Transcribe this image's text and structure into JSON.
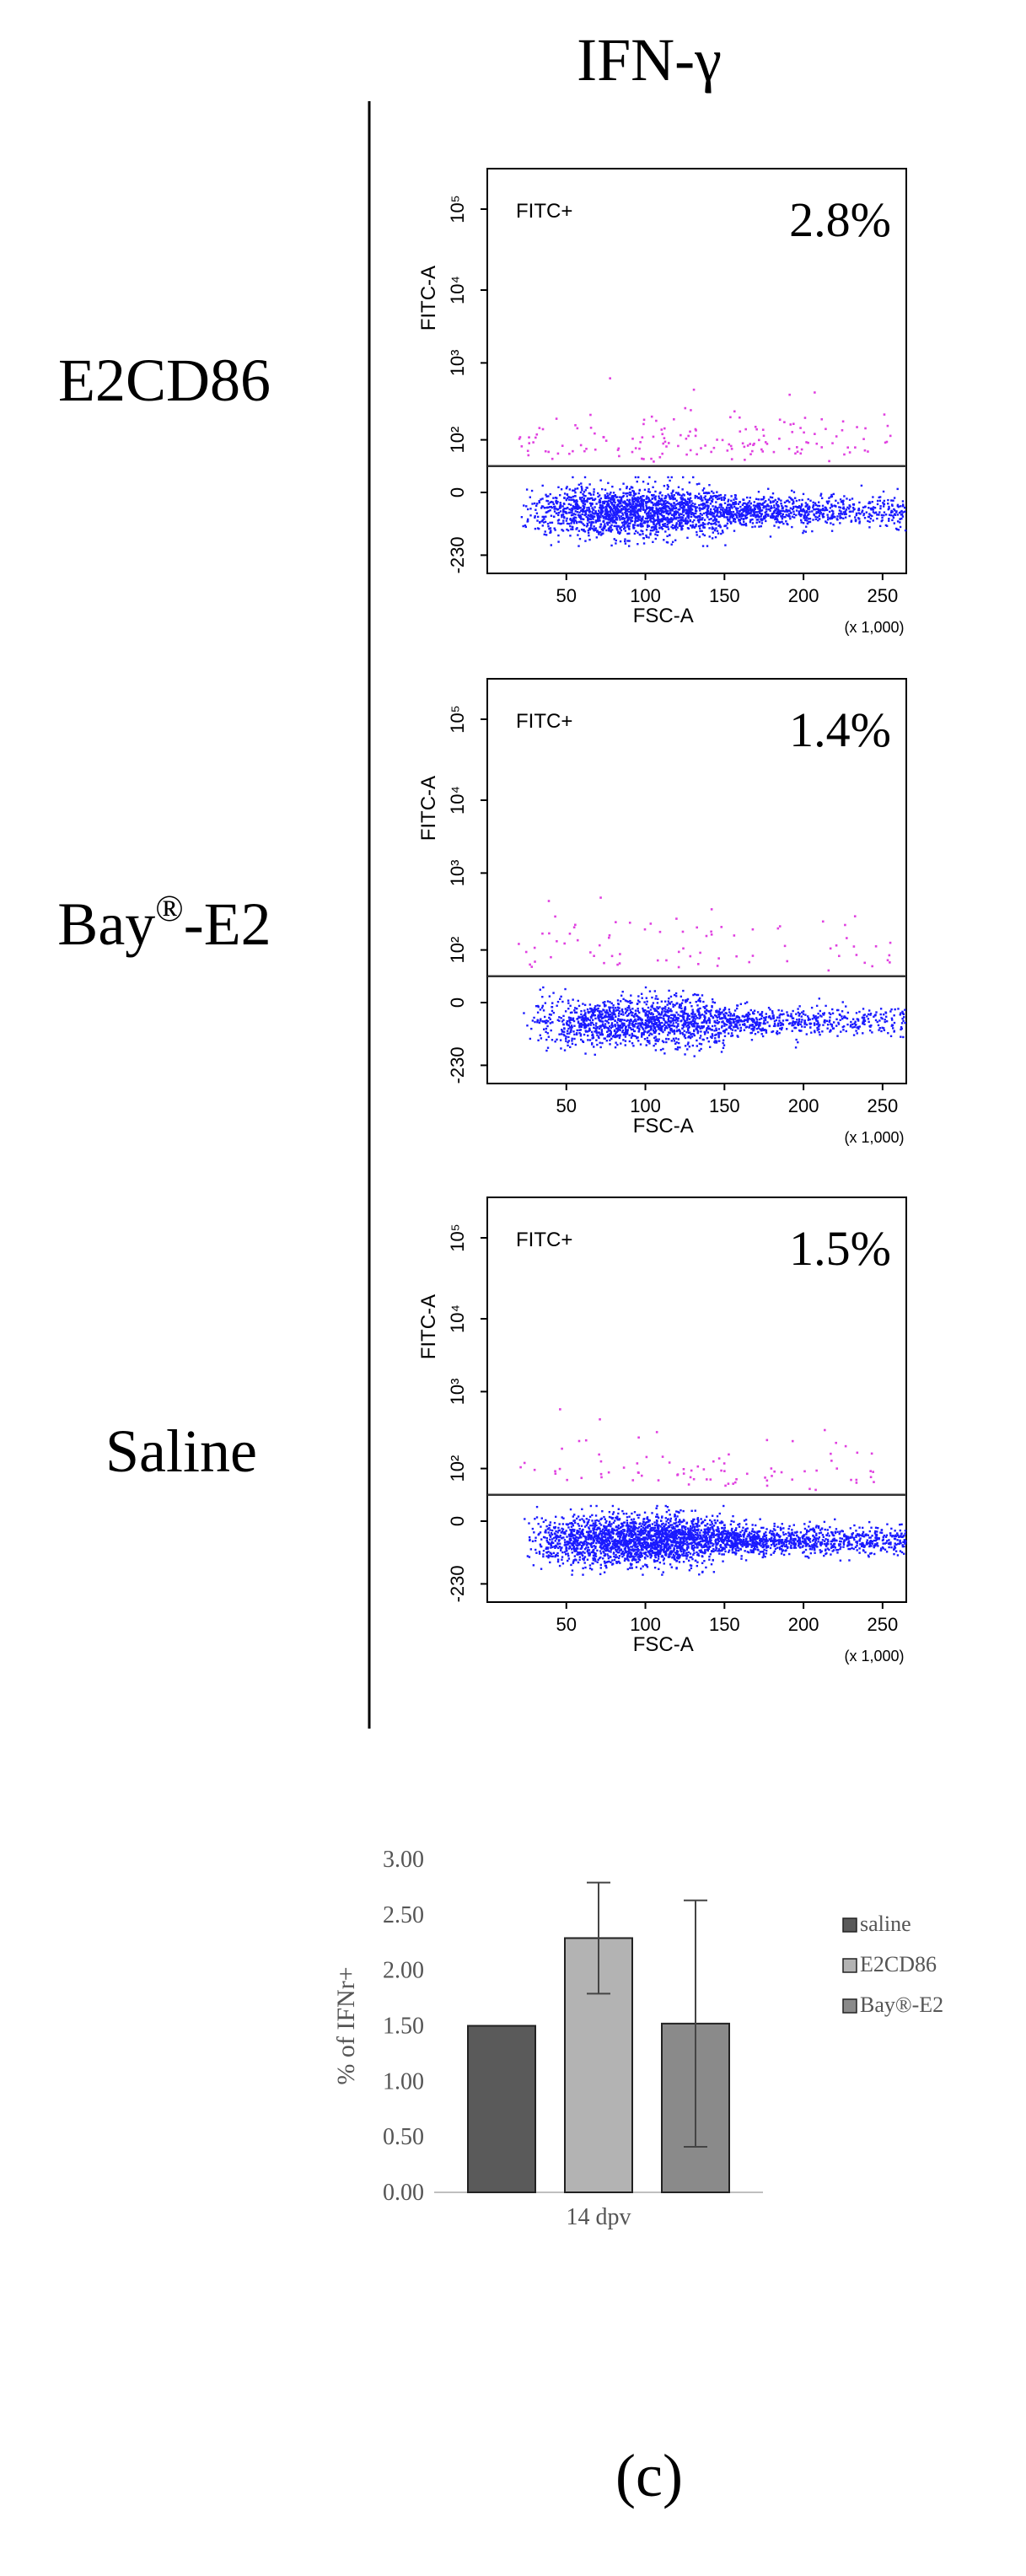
{
  "figure": {
    "column_title": "IFN-γ",
    "panel_label": "(c)"
  },
  "row_labels": [
    {
      "main": "E2CD86",
      "sup": ""
    },
    {
      "main": "Bay",
      "sup": "®",
      "suffix": "-E2"
    },
    {
      "main": "Saline",
      "sup": ""
    }
  ],
  "chart_data": [
    {
      "type": "scatter",
      "gate_label": "FITC+",
      "percent": "2.8%",
      "percent_value": 2.8,
      "xlabel": "FSC-A",
      "ylabel": "FITC-A",
      "x_multiplier": "(x 1,000)",
      "x_ticks": [
        "50",
        "100",
        "150",
        "200",
        "250"
      ],
      "y_ticks": [
        "-230",
        "0",
        "10²",
        "10³",
        "10⁴",
        "10⁵"
      ],
      "gate_threshold": "10²",
      "colors": {
        "positive": "#e040e0",
        "negative": "#1a1aff"
      },
      "density": 1.0
    },
    {
      "type": "scatter",
      "gate_label": "FITC+",
      "percent": "1.4%",
      "percent_value": 1.4,
      "xlabel": "FSC-A",
      "ylabel": "FITC-A",
      "x_multiplier": "(x 1,000)",
      "x_ticks": [
        "50",
        "100",
        "150",
        "200",
        "250"
      ],
      "y_ticks": [
        "-230",
        "0",
        "10²",
        "10³",
        "10⁴",
        "10⁵"
      ],
      "gate_threshold": "10²",
      "colors": {
        "positive": "#e040e0",
        "negative": "#1a1aff"
      },
      "density": 0.7
    },
    {
      "type": "scatter",
      "gate_label": "FITC+",
      "percent": "1.5%",
      "percent_value": 1.5,
      "xlabel": "FSC-A",
      "ylabel": "FITC-A",
      "x_multiplier": "(x 1,000)",
      "x_ticks": [
        "50",
        "100",
        "150",
        "200",
        "250"
      ],
      "y_ticks": [
        "-230",
        "0",
        "10²",
        "10³",
        "10⁴",
        "10⁵"
      ],
      "gate_threshold": "10²",
      "colors": {
        "positive": "#e040e0",
        "negative": "#1a1aff"
      },
      "density": 1.2
    },
    {
      "type": "bar",
      "categories": [
        "14 dpv"
      ],
      "ylabel": "% of IFNr+",
      "ylim": [
        0,
        3
      ],
      "y_ticks": [
        "0.00",
        "0.50",
        "1.00",
        "1.50",
        "2.00",
        "2.50",
        "3.00"
      ],
      "series": [
        {
          "name": "saline",
          "values": [
            1.5
          ],
          "error": [
            0.0
          ],
          "color": "#5a5a5a"
        },
        {
          "name": "E2CD86",
          "values": [
            2.29
          ],
          "error": [
            0.5
          ],
          "color": "#b3b3b3"
        },
        {
          "name": "Bay®-E2",
          "values": [
            1.52
          ],
          "error": [
            1.11
          ],
          "color": "#8a8a8a"
        }
      ],
      "legend_position": "right"
    }
  ]
}
